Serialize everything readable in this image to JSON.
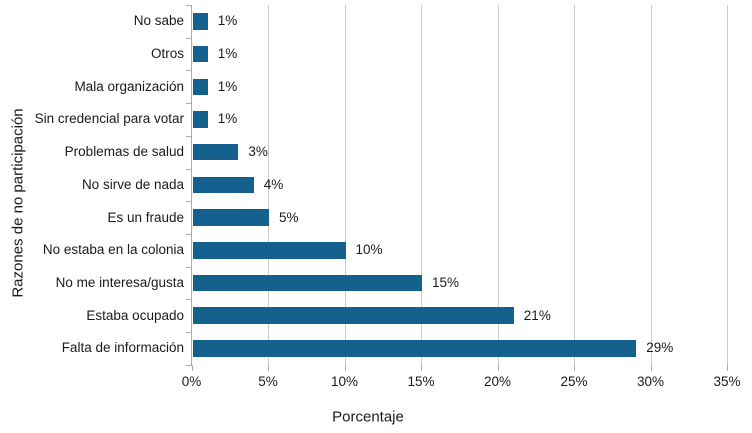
{
  "chart_data": {
    "type": "bar",
    "orientation": "horizontal",
    "xlabel": "Porcentaje",
    "ylabel": "Razones de no participación",
    "categories": [
      "No sabe",
      "Otros",
      "Mala organización",
      "Sin credencial para votar",
      "Problemas de salud",
      "No sirve de nada",
      "Es un fraude",
      "No estaba en la colonia",
      "No me interesa/gusta",
      "Estaba ocupado",
      "Falta de información"
    ],
    "values": [
      1,
      1,
      1,
      1,
      3,
      4,
      5,
      10,
      15,
      21,
      29
    ],
    "value_labels": [
      "1%",
      "1%",
      "1%",
      "1%",
      "3%",
      "4%",
      "5%",
      "10%",
      "15%",
      "21%",
      "29%"
    ],
    "x_tick_labels": [
      "0%",
      "5%",
      "10%",
      "15%",
      "20%",
      "25%",
      "30%",
      "35%"
    ],
    "x_tick_values": [
      0,
      5,
      10,
      15,
      20,
      25,
      30,
      35
    ],
    "xlim": [
      0,
      36
    ],
    "grid": "vertical",
    "legend": "none",
    "colors": {
      "bar": "#15618D",
      "gridline": "#cbcbcb",
      "axis": "#ababab",
      "text": "#1a1a1a"
    }
  }
}
